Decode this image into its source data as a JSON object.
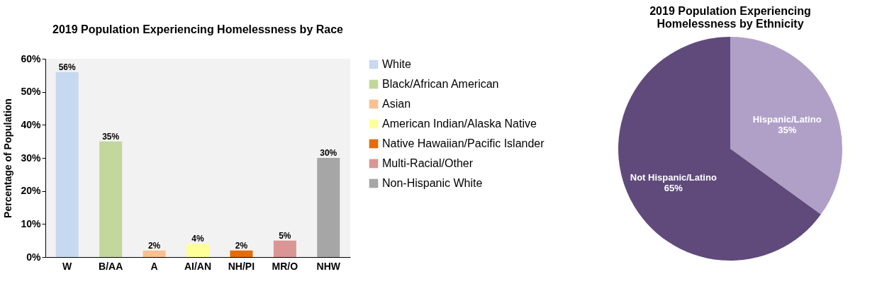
{
  "chart_data": [
    {
      "type": "bar",
      "title": "2019 Population Experiencing Homelessness by Race",
      "ylabel": "Percentage of Population",
      "categories": [
        "W",
        "B/AA",
        "A",
        "AI/AN",
        "NH/PI",
        "MR/O",
        "NHW"
      ],
      "series": [
        {
          "name": "White",
          "color": "#c6d9f1",
          "values": [
            56,
            null,
            null,
            null,
            null,
            null,
            null
          ],
          "value_labels": [
            "56%",
            null,
            null,
            null,
            null,
            null,
            null
          ]
        },
        {
          "name": "Black/African American",
          "color": "#c3d69b",
          "values": [
            null,
            35,
            null,
            null,
            null,
            null,
            null
          ],
          "value_labels": [
            null,
            "35%",
            null,
            null,
            null,
            null,
            null
          ]
        },
        {
          "name": "Asian",
          "color": "#fac090",
          "values": [
            null,
            null,
            2,
            null,
            null,
            null,
            null
          ],
          "value_labels": [
            null,
            null,
            "2%",
            null,
            null,
            null,
            null
          ]
        },
        {
          "name": "American Indian/Alaska Native",
          "color": "#ffff99",
          "values": [
            null,
            null,
            null,
            4,
            null,
            null,
            null
          ],
          "value_labels": [
            null,
            null,
            null,
            "4%",
            null,
            null,
            null
          ]
        },
        {
          "name": "Native Hawaiian/Pacific Islander",
          "color": "#e46c0a",
          "values": [
            null,
            null,
            null,
            null,
            2,
            null,
            null
          ],
          "value_labels": [
            null,
            null,
            null,
            null,
            "2%",
            null,
            null
          ]
        },
        {
          "name": "Multi-Racial/Other",
          "color": "#d99694",
          "values": [
            null,
            null,
            null,
            null,
            null,
            5,
            null
          ],
          "value_labels": [
            null,
            null,
            null,
            null,
            null,
            "5%",
            null
          ]
        },
        {
          "name": "Non-Hispanic White",
          "color": "#a6a6a6",
          "values": [
            null,
            null,
            null,
            null,
            null,
            null,
            30
          ],
          "value_labels": [
            null,
            null,
            null,
            null,
            null,
            null,
            "30%"
          ]
        }
      ],
      "ylim": [
        0,
        60
      ],
      "yticks": [
        {
          "value": 0,
          "label": "0%"
        },
        {
          "value": 10,
          "label": "10%"
        },
        {
          "value": 20,
          "label": "20%"
        },
        {
          "value": 30,
          "label": "30%"
        },
        {
          "value": 40,
          "label": "40%"
        },
        {
          "value": 50,
          "label": "50%"
        },
        {
          "value": 60,
          "label": "60%"
        }
      ],
      "legend": "right"
    },
    {
      "type": "pie",
      "title": "2019 Population Experiencing\nHomelessness by Ethnicity",
      "categories": [
        "Hispanic/Latino",
        "Not Hispanic/Latino"
      ],
      "values": [
        35,
        65
      ],
      "colors": [
        "#b0a0c8",
        "#604a7b"
      ],
      "value_labels": [
        "35%",
        "65%"
      ]
    }
  ]
}
